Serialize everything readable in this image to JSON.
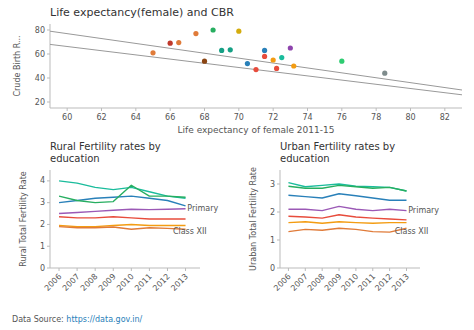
{
  "chart_data": [
    {
      "type": "scatter",
      "title": "Life expectancy(female) and CBR",
      "x_label": "Life expectancy of female 2011-15",
      "y_label": "Crude Birth R...",
      "xlim": [
        59,
        83
      ],
      "ylim": [
        15,
        85
      ],
      "xticks": [
        60,
        62,
        64,
        66,
        68,
        70,
        72,
        74,
        76,
        78,
        80,
        82
      ],
      "yticks": [
        20,
        40,
        60,
        80
      ],
      "grid": false,
      "series": [
        {
          "type": "scatter",
          "x": [
            65.0,
            66.0,
            66.5,
            67.5,
            68.0,
            68.5,
            69.0,
            69.5,
            70.0,
            70.5,
            71.0,
            71.5,
            71.5,
            72.0,
            72.2,
            72.5,
            73.0,
            73.2,
            76.0,
            78.5
          ],
          "values": [
            61.0,
            69.0,
            69.5,
            77.0,
            54.0,
            80.0,
            63.0,
            63.5,
            79.0,
            52.0,
            47.0,
            63.0,
            58.0,
            55.0,
            48.0,
            57.0,
            65.0,
            50.0,
            54.0,
            44.0
          ],
          "colors": [
            "#e07b39",
            "#c0392b",
            "#e07b39",
            "#e07b39",
            "#8b4513",
            "#27ae60",
            "#16a085",
            "#16a085",
            "#d4ac0d",
            "#2980b9",
            "#e74c3c",
            "#2980b9",
            "#e74c3c",
            "#f39c12",
            "#e74c3c",
            "#1abc9c",
            "#8e44ad",
            "#f39c12",
            "#2ecc71",
            "#7f8c8d"
          ]
        },
        {
          "type": "line",
          "x": [
            59,
            83
          ],
          "values": [
            79,
            30
          ],
          "color": "#999999"
        },
        {
          "type": "line",
          "x": [
            59,
            83
          ],
          "values": [
            68,
            26
          ],
          "color": "#999999"
        }
      ]
    },
    {
      "type": "line",
      "title": "Rural Fertility rates by\neducation",
      "y_label": "Rural Total Fertility Rate",
      "x": [
        2006,
        2007,
        2008,
        2009,
        2010,
        2011,
        2012,
        2013
      ],
      "xlim": [
        2005.5,
        2013.8
      ],
      "xticks": [
        2006,
        2007,
        2008,
        2009,
        2010,
        2011,
        2012,
        2013
      ],
      "ylim": [
        0,
        4.5
      ],
      "yticks": [
        0,
        1,
        2,
        3,
        4
      ],
      "grid": false,
      "annotations": [
        {
          "text": "Primary",
          "x": 2013.1,
          "y": 2.72
        },
        {
          "text": "Class XII",
          "x": 2012.3,
          "y": 1.66
        }
      ],
      "series": [
        {
          "values": [
            4.0,
            3.9,
            3.7,
            3.6,
            3.7,
            3.5,
            3.3,
            3.2
          ],
          "color": "#1abc9c"
        },
        {
          "values": [
            3.0,
            3.1,
            3.2,
            3.25,
            3.3,
            3.2,
            3.1,
            2.85
          ],
          "color": "#2980b9"
        },
        {
          "values": [
            3.3,
            3.1,
            3.0,
            3.05,
            3.8,
            3.3,
            3.3,
            3.25
          ],
          "color": "#27ae60"
        },
        {
          "values": [
            2.5,
            2.55,
            2.6,
            2.65,
            2.7,
            2.68,
            2.7,
            2.72
          ],
          "color": "#9b59b6"
        },
        {
          "values": [
            2.35,
            2.3,
            2.3,
            2.35,
            2.3,
            2.25,
            2.25,
            2.25
          ],
          "color": "#e74c3c"
        },
        {
          "values": [
            1.95,
            1.9,
            1.9,
            1.95,
            2.0,
            1.95,
            1.95,
            1.95
          ],
          "color": "#f39c12"
        },
        {
          "values": [
            1.9,
            1.85,
            1.85,
            1.88,
            1.78,
            1.85,
            1.82,
            1.78
          ],
          "color": "#e07b39"
        }
      ]
    },
    {
      "type": "line",
      "title": "Urban Fertility rates by\neducation",
      "y_label": "Uraban Total Fertility Rate",
      "x": [
        2006,
        2007,
        2008,
        2009,
        2010,
        2011,
        2012,
        2013
      ],
      "xlim": [
        2005.5,
        2013.8
      ],
      "xticks": [
        2006,
        2007,
        2008,
        2009,
        2010,
        2011,
        2012,
        2013
      ],
      "ylim": [
        0,
        3.5
      ],
      "yticks": [
        0,
        1,
        2,
        3
      ],
      "grid": false,
      "annotations": [
        {
          "text": "Primary",
          "x": 2013.1,
          "y": 2.05
        },
        {
          "text": "Class XII",
          "x": 2012.3,
          "y": 1.32
        }
      ],
      "series": [
        {
          "values": [
            3.05,
            2.9,
            2.95,
            3.0,
            2.92,
            2.9,
            2.88,
            2.75
          ],
          "color": "#1abc9c"
        },
        {
          "values": [
            2.92,
            2.85,
            2.85,
            2.95,
            2.9,
            2.85,
            2.88,
            2.75
          ],
          "color": "#27ae60"
        },
        {
          "values": [
            2.6,
            2.55,
            2.5,
            2.65,
            2.58,
            2.5,
            2.42,
            2.42
          ],
          "color": "#2980b9"
        },
        {
          "values": [
            2.1,
            2.1,
            2.05,
            2.2,
            2.1,
            2.05,
            2.1,
            2.05
          ],
          "color": "#9b59b6"
        },
        {
          "values": [
            1.85,
            1.82,
            1.78,
            1.9,
            1.82,
            1.78,
            1.75,
            1.72
          ],
          "color": "#e74c3c"
        },
        {
          "values": [
            1.62,
            1.65,
            1.6,
            1.65,
            1.62,
            1.6,
            1.62,
            1.62
          ],
          "color": "#f39c12"
        },
        {
          "values": [
            1.3,
            1.38,
            1.35,
            1.42,
            1.38,
            1.3,
            1.28,
            1.42
          ],
          "color": "#e07b39"
        }
      ]
    }
  ],
  "footnote": {
    "text": "Data Source: ",
    "url": "https://data.gov.in/",
    "url_color": "#2980b9"
  }
}
